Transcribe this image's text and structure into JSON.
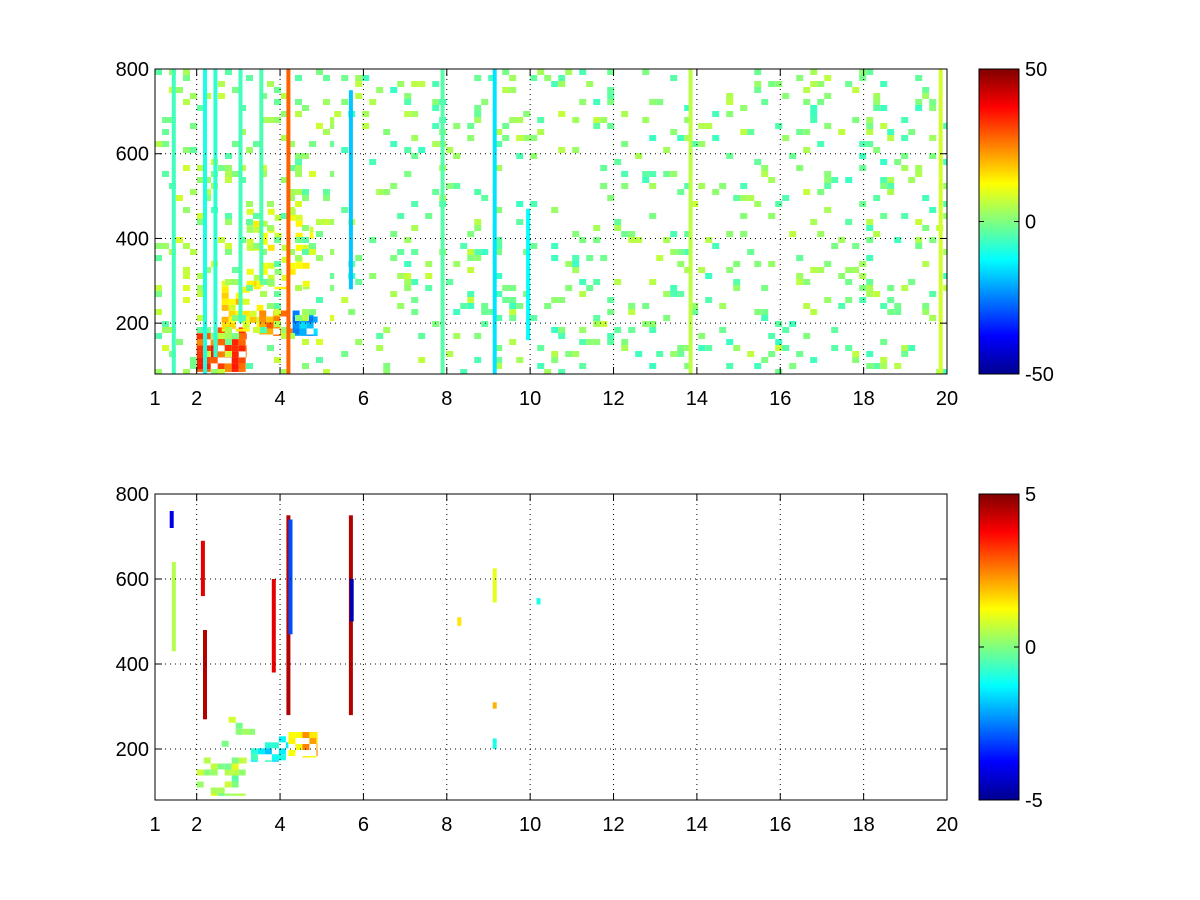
{
  "chart_data": [
    {
      "type": "heatmap",
      "title": "",
      "xlabel": "",
      "ylabel": "",
      "xlim": [
        1,
        20
      ],
      "ylim": [
        80,
        800
      ],
      "x_ticks": [
        "1",
        "2",
        "4",
        "6",
        "8",
        "10",
        "12",
        "14",
        "16",
        "18",
        "20"
      ],
      "y_ticks": [
        "200",
        "400",
        "600",
        "800"
      ],
      "grid": true,
      "colormap": "jet",
      "colorbar": {
        "clim": [
          -50,
          50
        ],
        "ticks": [
          "50",
          "0",
          "-50"
        ],
        "position": "right"
      },
      "nan_color": "#ffffff",
      "regions": [
        {
          "x": [
            2.0,
            3.2
          ],
          "y": [
            85,
            190
          ],
          "value": 30,
          "density": 0.75
        },
        {
          "x": [
            2.6,
            3.6
          ],
          "y": [
            180,
            300
          ],
          "value": 14,
          "density": 0.55
        },
        {
          "x": [
            3.5,
            4.3
          ],
          "y": [
            170,
            230
          ],
          "value": 22,
          "density": 0.7
        },
        {
          "x": [
            3.2,
            4.8
          ],
          "y": [
            280,
            470
          ],
          "value": 8,
          "density": 0.3
        },
        {
          "x": [
            4.3,
            4.9
          ],
          "y": [
            170,
            230
          ],
          "value": -22,
          "density": 0.8
        },
        {
          "x": [
            1.0,
            5.3
          ],
          "y": [
            80,
            800
          ],
          "value": 2,
          "density": 0.16
        },
        {
          "x": [
            5.3,
            20.0
          ],
          "y": [
            80,
            800
          ],
          "value": 0,
          "density": 0.12
        }
      ],
      "stripes": [
        {
          "x": 1.45,
          "y": [
            80,
            800
          ],
          "value": -6
        },
        {
          "x": 2.2,
          "y": [
            80,
            800
          ],
          "value": -10
        },
        {
          "x": 2.45,
          "y": [
            120,
            800
          ],
          "value": -8
        },
        {
          "x": 3.05,
          "y": [
            200,
            800
          ],
          "value": -6
        },
        {
          "x": 3.55,
          "y": [
            300,
            800
          ],
          "value": -5
        },
        {
          "x": 4.2,
          "y": [
            80,
            800
          ],
          "value": 28
        },
        {
          "x": 5.7,
          "y": [
            280,
            750
          ],
          "value": -18
        },
        {
          "x": 7.9,
          "y": [
            80,
            800
          ],
          "value": -4
        },
        {
          "x": 9.15,
          "y": [
            80,
            800
          ],
          "value": -15
        },
        {
          "x": 9.95,
          "y": [
            160,
            470
          ],
          "value": -12
        },
        {
          "x": 13.85,
          "y": [
            80,
            800
          ],
          "value": 6
        },
        {
          "x": 19.85,
          "y": [
            80,
            800
          ],
          "value": 8
        }
      ]
    },
    {
      "type": "heatmap",
      "title": "",
      "xlabel": "",
      "ylabel": "",
      "xlim": [
        1,
        20
      ],
      "ylim": [
        80,
        800
      ],
      "x_ticks": [
        "1",
        "2",
        "4",
        "6",
        "8",
        "10",
        "12",
        "14",
        "16",
        "18",
        "20"
      ],
      "y_ticks": [
        "200",
        "400",
        "600",
        "800"
      ],
      "grid": true,
      "colormap": "jet",
      "colorbar": {
        "clim": [
          -5,
          5
        ],
        "ticks": [
          "5",
          "0",
          "-5"
        ],
        "position": "right"
      },
      "nan_color": "#ffffff",
      "regions": [
        {
          "x": [
            2.0,
            3.2
          ],
          "y": [
            90,
            180
          ],
          "value": 0.3,
          "density": 0.45
        },
        {
          "x": [
            2.6,
            3.4
          ],
          "y": [
            180,
            290
          ],
          "value": 0.5,
          "density": 0.2
        },
        {
          "x": [
            3.3,
            4.2
          ],
          "y": [
            170,
            230
          ],
          "value": -1.2,
          "density": 0.35
        },
        {
          "x": [
            4.2,
            4.9
          ],
          "y": [
            180,
            240
          ],
          "value": 1.8,
          "density": 0.45
        }
      ],
      "stripes": [
        {
          "x": 1.4,
          "y": [
            720,
            760
          ],
          "value": -4
        },
        {
          "x": 1.45,
          "y": [
            430,
            640
          ],
          "value": 0.5
        },
        {
          "x": 2.15,
          "y": [
            560,
            690
          ],
          "value": 4
        },
        {
          "x": 2.2,
          "y": [
            270,
            480
          ],
          "value": 4.5
        },
        {
          "x": 3.85,
          "y": [
            380,
            600
          ],
          "value": 4
        },
        {
          "x": 4.2,
          "y": [
            280,
            750
          ],
          "value": 4.5
        },
        {
          "x": 4.25,
          "y": [
            470,
            740
          ],
          "value": -3
        },
        {
          "x": 5.7,
          "y": [
            280,
            750
          ],
          "value": 4.5
        },
        {
          "x": 5.72,
          "y": [
            500,
            600
          ],
          "value": -4.5
        },
        {
          "x": 8.3,
          "y": [
            490,
            510
          ],
          "value": 1.5
        },
        {
          "x": 9.15,
          "y": [
            545,
            625
          ],
          "value": 1
        },
        {
          "x": 9.15,
          "y": [
            295,
            310
          ],
          "value": 2
        },
        {
          "x": 9.15,
          "y": [
            200,
            225
          ],
          "value": -1
        },
        {
          "x": 10.2,
          "y": [
            540,
            555
          ],
          "value": -1
        }
      ]
    }
  ]
}
